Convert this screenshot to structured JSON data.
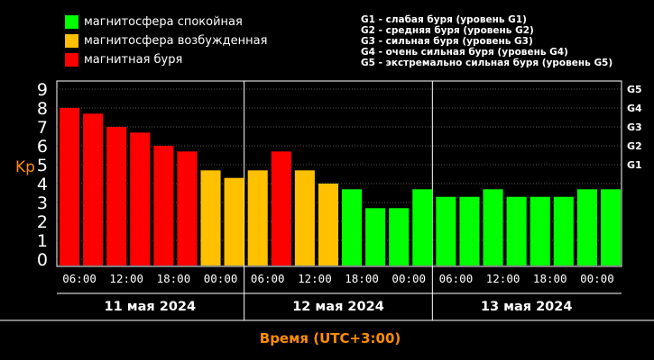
{
  "legend": {
    "items": [
      {
        "label": "магнитосфера спокойная",
        "color": "#00ff00"
      },
      {
        "label": "магнитосфера возбужденная",
        "color": "#ffc000"
      },
      {
        "label": "магнитная буря",
        "color": "#ff0000"
      }
    ]
  },
  "g_scale": {
    "lines": [
      "G1 - слабая буря (уровень G1)",
      "G2 - средняя буря (уровень G2)",
      "G3 - сильная буря (уровень G3)",
      "G4 - очень сильная буря (уровень G4)",
      "G5 - экстремально сильная буря (уровень G5)"
    ]
  },
  "chart_data": {
    "type": "bar",
    "ylabel": "Kp",
    "xlabel": "Время (UTC+3:00)",
    "ylim": [
      0,
      9
    ],
    "y_ticks": [
      "0",
      "1",
      "2",
      "3",
      "4",
      "5",
      "6",
      "7",
      "8",
      "9"
    ],
    "g_levels": [
      {
        "label": "G1",
        "kp": 5
      },
      {
        "label": "G2",
        "kp": 6
      },
      {
        "label": "G3",
        "kp": 7
      },
      {
        "label": "G4",
        "kp": 8
      },
      {
        "label": "G5",
        "kp": 9
      }
    ],
    "x_tick_labels": [
      "06:00",
      "12:00",
      "18:00",
      "00:00",
      "06:00",
      "12:00",
      "18:00",
      "00:00",
      "06:00",
      "12:00",
      "18:00",
      "00:00"
    ],
    "days": [
      "11 мая 2024",
      "12 мая 2024",
      "13 мая 2024"
    ],
    "values": [
      8.0,
      7.7,
      7.0,
      6.7,
      6.0,
      5.7,
      4.7,
      4.3,
      4.7,
      5.7,
      4.7,
      4.0,
      3.7,
      2.7,
      2.7,
      3.7,
      3.3,
      3.3,
      3.7,
      3.3,
      3.3,
      3.3,
      3.7,
      3.7
    ],
    "colors": {
      "quiet": "#00ff00",
      "active": "#ffc000",
      "storm": "#ff0000"
    },
    "grid": true
  }
}
